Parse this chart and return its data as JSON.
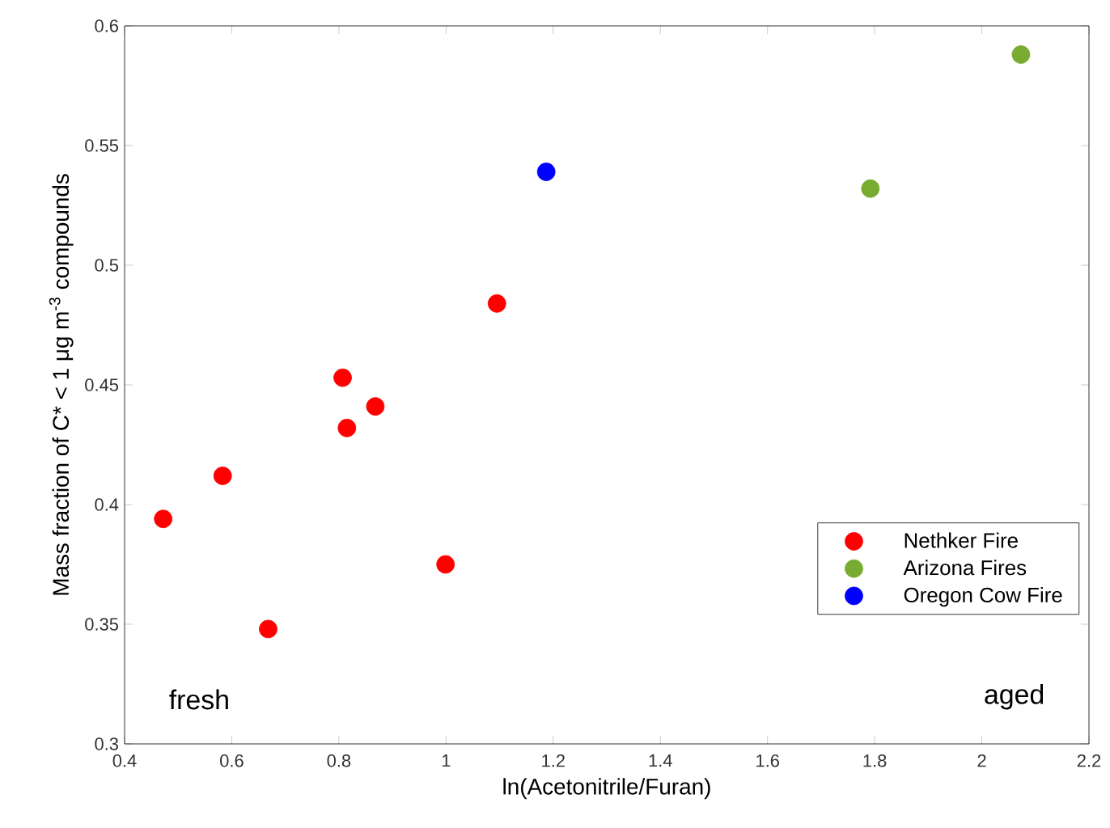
{
  "chart_data": {
    "type": "scatter",
    "xlabel": "ln(Acetonitrile/Furan)",
    "ylabel": "Mass fraction of C* < 1 μg m$^{-3}$ compounds",
    "xlim": [
      0.4,
      2.2
    ],
    "ylim": [
      0.3,
      0.6
    ],
    "xticks": [
      0.4,
      0.6,
      0.8,
      1,
      1.2,
      1.4,
      1.6,
      1.8,
      2,
      2.2
    ],
    "yticks": [
      0.3,
      0.35,
      0.4,
      0.45,
      0.5,
      0.55,
      0.6
    ],
    "marker": "circle",
    "legend": "bottom right",
    "annotations": [
      "fresh",
      "aged"
    ],
    "series": [
      {
        "name": "Nethker Fire",
        "color": "#ff0000",
        "x": [
          0.472,
          0.583,
          0.668,
          0.807,
          0.815,
          0.868,
          0.999,
          1.095
        ],
        "values": [
          0.394,
          0.412,
          0.348,
          0.453,
          0.432,
          0.441,
          0.375,
          0.484
        ]
      },
      {
        "name": "Arizona Fires",
        "color": "#77ac30",
        "x": [
          1.792,
          2.073
        ],
        "values": [
          0.532,
          0.588
        ]
      },
      {
        "name": "Oregon Cow Fire",
        "color": "#0000ff",
        "x": [
          1.187
        ],
        "values": [
          0.539
        ]
      }
    ]
  }
}
